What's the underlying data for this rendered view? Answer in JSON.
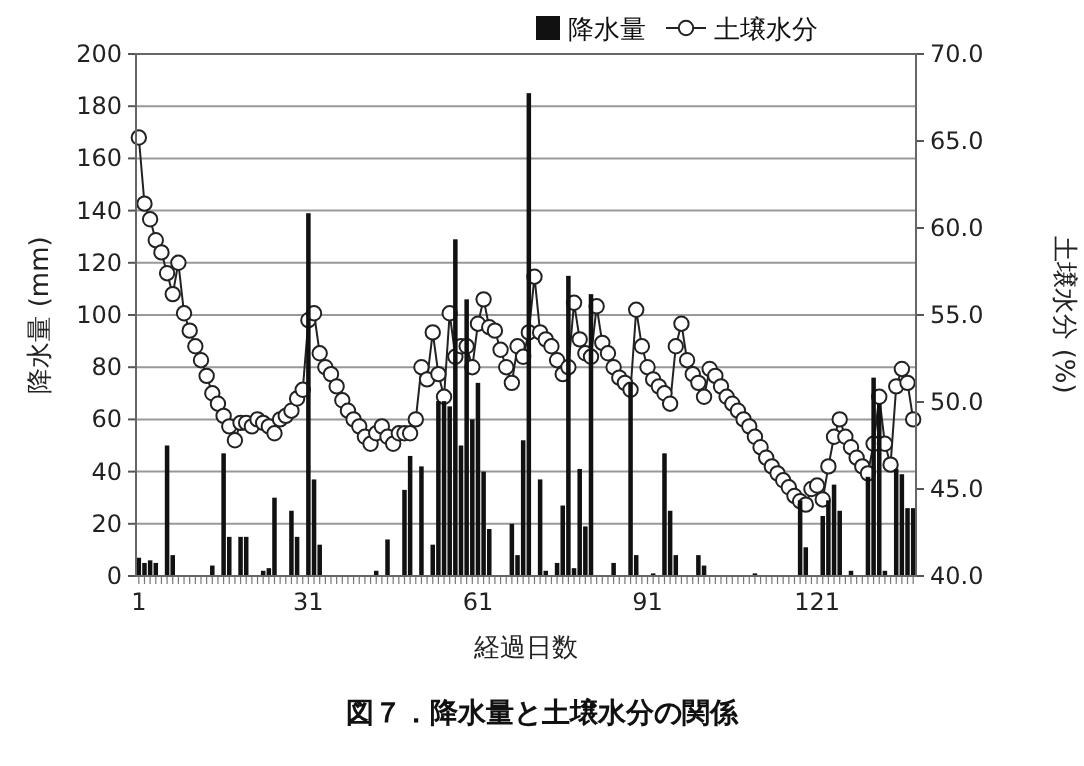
{
  "chart_data": {
    "type": "bar",
    "title": "図７．降水量と土壌水分の関係",
    "xlabel": "経過日数",
    "ylabel": "降水量 (mm)",
    "y2label": "土壌水分 (%)",
    "categories": [
      "1",
      null,
      null,
      null,
      null,
      null,
      null,
      null,
      null,
      null,
      null,
      null,
      null,
      null,
      null,
      null,
      null,
      null,
      null,
      null,
      null,
      null,
      null,
      null,
      null,
      null,
      null,
      null,
      null,
      null,
      "31",
      null,
      null,
      null,
      null,
      null,
      null,
      null,
      null,
      null,
      null,
      null,
      null,
      null,
      null,
      null,
      null,
      null,
      null,
      null,
      null,
      null,
      null,
      null,
      null,
      null,
      null,
      null,
      null,
      null,
      "61",
      null,
      null,
      null,
      null,
      null,
      null,
      null,
      null,
      null,
      null,
      null,
      null,
      null,
      null,
      null,
      null,
      null,
      null,
      null,
      null,
      null,
      null,
      null,
      null,
      null,
      null,
      null,
      null,
      null,
      "91",
      null,
      null,
      null,
      null,
      null,
      null,
      null,
      null,
      null,
      null,
      null,
      null,
      null,
      null,
      null,
      null,
      null,
      null,
      null,
      null,
      null,
      null,
      null,
      null,
      null,
      null,
      null,
      null,
      null,
      "121",
      null,
      null,
      null,
      null,
      null,
      null,
      null,
      null,
      null,
      null,
      null,
      null,
      null,
      null,
      null,
      null,
      null
    ],
    "series": [
      {
        "name": "降水量",
        "color": "#111111",
        "values": [
          7,
          5,
          6,
          5,
          0,
          50,
          8,
          0,
          0,
          0,
          0,
          0,
          0,
          4,
          0,
          47,
          15,
          0,
          15,
          15,
          0,
          0,
          2,
          3,
          30,
          0,
          0,
          25,
          15,
          0,
          139,
          37,
          12,
          0,
          0,
          0,
          0,
          0,
          0,
          0,
          0,
          0,
          2,
          0,
          14,
          0,
          0,
          33,
          46,
          0,
          42,
          0,
          12,
          67,
          67,
          65,
          129,
          50,
          106,
          60,
          74,
          40,
          18,
          0,
          0,
          0,
          20,
          8,
          52,
          185,
          0,
          37,
          2,
          0,
          5,
          27,
          115,
          3,
          41,
          19,
          108,
          0,
          0,
          0,
          5,
          0,
          0,
          74,
          8,
          0,
          0,
          1,
          0,
          47,
          25,
          8,
          0,
          0,
          0,
          8,
          4,
          0,
          0,
          0,
          0,
          0,
          0,
          0,
          0,
          1,
          0,
          0,
          0,
          0,
          0,
          0,
          0,
          29,
          11,
          0,
          0,
          23,
          29,
          35,
          25,
          0,
          2,
          0,
          0,
          38,
          76,
          66,
          2,
          0,
          41,
          39,
          26,
          26
        ]
      },
      {
        "name": "土壌水分",
        "type": "line",
        "axis": "y2",
        "color": "#222222",
        "values": [
          65.2,
          61.4,
          60.5,
          59.3,
          58.6,
          57.4,
          56.2,
          58.0,
          55.1,
          54.1,
          53.2,
          52.4,
          51.5,
          50.5,
          49.9,
          49.2,
          48.6,
          47.8,
          48.8,
          48.8,
          48.6,
          49.0,
          48.8,
          48.6,
          48.2,
          49.0,
          49.2,
          49.5,
          50.2,
          50.7,
          54.7,
          55.1,
          52.8,
          52.0,
          51.6,
          50.9,
          50.1,
          49.5,
          49.0,
          48.6,
          48.0,
          47.6,
          48.2,
          48.6,
          48.0,
          47.6,
          48.2,
          48.2,
          48.2,
          49.0,
          52.0,
          51.3,
          54.0,
          51.6,
          50.3,
          55.1,
          52.6,
          53.2,
          53.2,
          52.0,
          54.5,
          55.9,
          54.3,
          54.1,
          53.0,
          52.0,
          51.1,
          53.2,
          52.6,
          54.0,
          57.2,
          54.0,
          53.6,
          53.2,
          52.4,
          51.6,
          52.0,
          55.7,
          53.6,
          52.8,
          52.6,
          55.5,
          53.4,
          52.8,
          52.0,
          51.4,
          51.1,
          50.7,
          55.3,
          53.2,
          52.0,
          51.3,
          50.9,
          50.5,
          49.9,
          53.2,
          54.5,
          52.4,
          51.6,
          51.1,
          50.3,
          51.9,
          51.5,
          50.9,
          50.3,
          49.9,
          49.5,
          49.0,
          48.6,
          48.0,
          47.4,
          46.8,
          46.3,
          45.9,
          45.5,
          45.1,
          44.6,
          44.3,
          44.1,
          45.0,
          45.2,
          44.4,
          46.3,
          48.0,
          49.0,
          48.0,
          47.4,
          46.8,
          46.3,
          45.9,
          47.6,
          50.3,
          47.6,
          46.4,
          50.9,
          51.9,
          51.1,
          49.0
        ]
      }
    ],
    "ylim": [
      0,
      200
    ],
    "yticks": [
      0,
      20,
      40,
      60,
      80,
      100,
      120,
      140,
      160,
      180,
      200
    ],
    "y2lim": [
      40,
      70
    ],
    "y2ticks": [
      {
        "value": 40,
        "label": "40.0"
      },
      {
        "value": 45,
        "label": "45.0"
      },
      {
        "value": 50,
        "label": "50.0"
      },
      {
        "value": 55,
        "label": "55.0"
      },
      {
        "value": 60,
        "label": "60.0"
      },
      {
        "value": 65,
        "label": "65.0"
      },
      {
        "value": 70,
        "label": "70.0"
      }
    ],
    "grid": "y",
    "legend": "top right",
    "marker": "circle"
  }
}
